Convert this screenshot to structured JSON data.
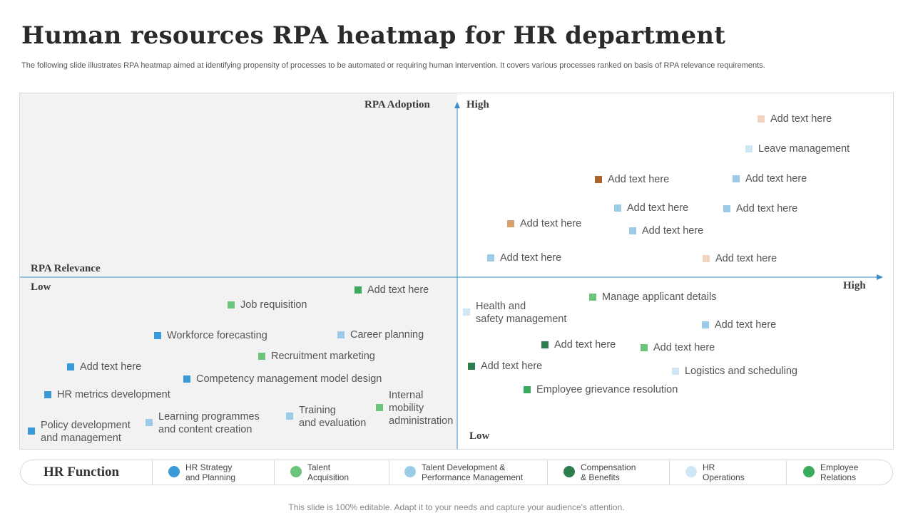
{
  "header": {
    "title": "Human resources RPA heatmap for HR department",
    "subtitle": "The following slide illustrates RPA heatmap aimed at identifying propensity of processes to be automated or requiring human intervention. It covers various processes ranked on basis of RPA relevance requirements."
  },
  "colors": {
    "strategy": "#3a9ad9",
    "talent_acq": "#6cc47c",
    "talent_dev": "#9ccbe8",
    "comp": "#2e7d4f",
    "ops": "#cfe6f5",
    "emp_rel": "#3aab5c",
    "brown": "#a8652a",
    "orange": "#d9a06e",
    "peach": "#f2d3bd",
    "axis": "#3a8fc6"
  },
  "axes": {
    "y_label": "RPA Adoption",
    "y_high": "High",
    "y_low": "Low",
    "x_label": "RPA Relevance",
    "x_low": "Low",
    "x_high": "High"
  },
  "items": [
    {
      "label": "Add text here",
      "category": "peach"
    },
    {
      "label": "Leave management",
      "category": "ops"
    },
    {
      "label": "Add text here",
      "category": "brown"
    },
    {
      "label": "Add text here",
      "category": "talent_dev"
    },
    {
      "label": "Add text here",
      "category": "talent_dev"
    },
    {
      "label": "Add text here",
      "category": "talent_dev"
    },
    {
      "label": "Add text here",
      "category": "orange"
    },
    {
      "label": "Add text here",
      "category": "talent_dev"
    },
    {
      "label": "Add text here",
      "category": "talent_dev"
    },
    {
      "label": "Add text here",
      "category": "peach"
    },
    {
      "label": "Add text here",
      "category": "emp_rel"
    },
    {
      "label": "Job requisition",
      "category": "talent_acq"
    },
    {
      "label": "Workforce forecasting",
      "category": "strategy"
    },
    {
      "label": "Career planning",
      "category": "talent_dev"
    },
    {
      "label": "Recruitment marketing",
      "category": "talent_acq"
    },
    {
      "label": "Add text here",
      "category": "strategy"
    },
    {
      "label": "Competency management model design",
      "category": "strategy"
    },
    {
      "label": "HR metrics development",
      "category": "strategy"
    },
    {
      "label": "Policy development\nand management",
      "category": "strategy"
    },
    {
      "label": "Learning programmes\nand content creation",
      "category": "talent_dev"
    },
    {
      "label": "Training\nand evaluation",
      "category": "talent_dev"
    },
    {
      "label": "Internal\nmobility\nadministration",
      "category": "talent_acq"
    },
    {
      "label": "Health and\nsafety management",
      "category": "ops"
    },
    {
      "label": "Manage applicant details",
      "category": "talent_acq"
    },
    {
      "label": "Add text here",
      "category": "talent_dev"
    },
    {
      "label": "Add text here",
      "category": "comp"
    },
    {
      "label": "Add text here",
      "category": "talent_acq"
    },
    {
      "label": "Add text here",
      "category": "comp"
    },
    {
      "label": "Logistics and scheduling",
      "category": "ops"
    },
    {
      "label": "Employee grievance resolution",
      "category": "emp_rel"
    }
  ],
  "legend": {
    "title": "HR Function",
    "items": [
      {
        "label": "HR Strategy\nand Planning",
        "category": "strategy"
      },
      {
        "label": "Talent\nAcquisition",
        "category": "talent_acq"
      },
      {
        "label": "Talent Development &\nPerformance Management",
        "category": "talent_dev"
      },
      {
        "label": "Compensation\n& Benefits",
        "category": "comp"
      },
      {
        "label": "HR\nOperations",
        "category": "ops"
      },
      {
        "label": "Employee\nRelations",
        "category": "emp_rel"
      }
    ]
  },
  "footer": "This slide is 100% editable. Adapt it to your needs and capture your audience's attention."
}
